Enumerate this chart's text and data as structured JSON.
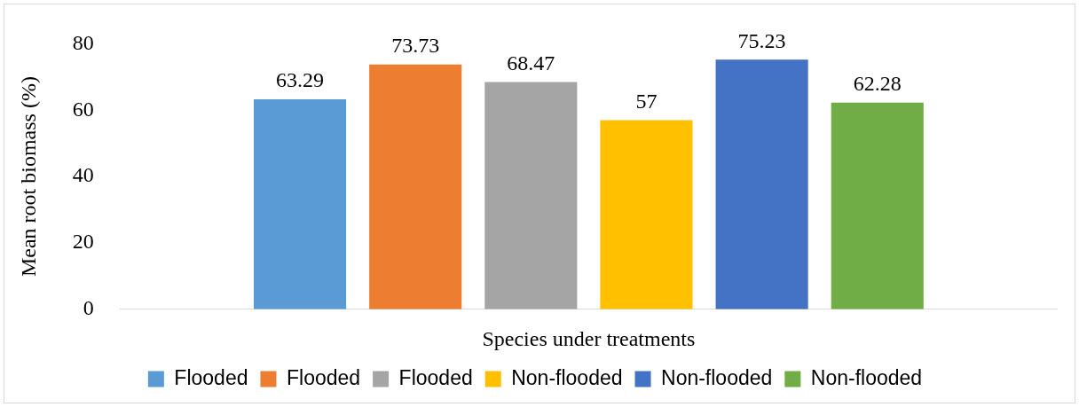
{
  "chart_data": {
    "type": "bar",
    "xlabel": "Species under treatments",
    "ylabel": "Mean root biomass (%)",
    "categories": [
      null
    ],
    "series": [
      {
        "name": "Flooded",
        "color": "#5b9bd5",
        "values": [
          63.29
        ]
      },
      {
        "name": "Flooded",
        "color": "#ed7d31",
        "values": [
          73.73
        ]
      },
      {
        "name": "Flooded",
        "color": "#a5a5a5",
        "values": [
          68.47
        ]
      },
      {
        "name": "Non-flooded",
        "color": "#ffc000",
        "values": [
          57
        ]
      },
      {
        "name": "Non-flooded",
        "color": "#4472c4",
        "values": [
          75.23
        ]
      },
      {
        "name": "Non-flooded",
        "color": "#70ad47",
        "values": [
          62.28
        ]
      }
    ],
    "ylim": [
      0,
      80
    ],
    "yticks": [
      0,
      20,
      40,
      60,
      80
    ],
    "grid": false,
    "legend": "bottom",
    "data_labels": true
  }
}
